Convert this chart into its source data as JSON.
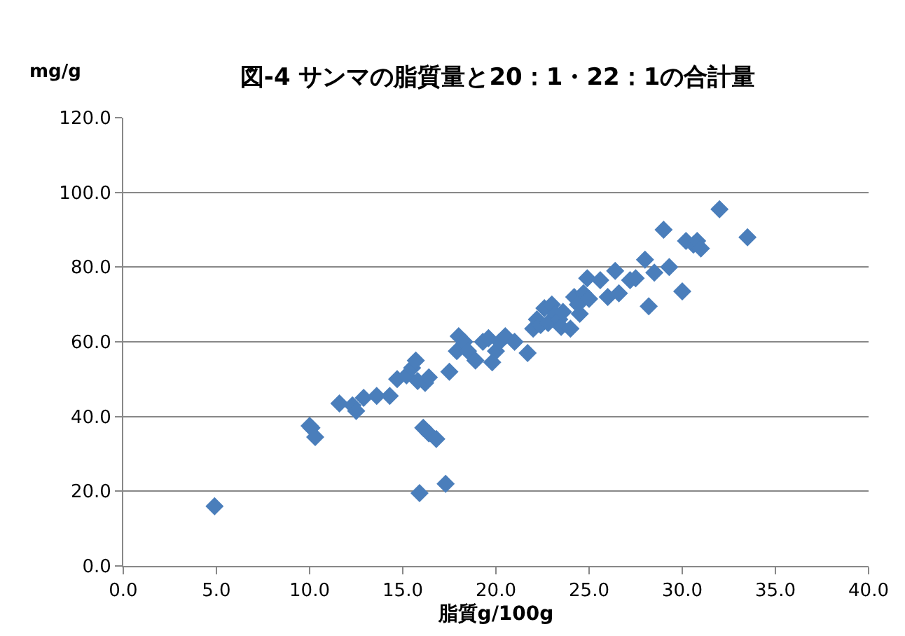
{
  "chart_data": {
    "type": "scatter",
    "title": "図-4 サンマの脂質量と20：1・22：1の合計量",
    "xlabel": "脂質g/100g",
    "ylabel": "mg/g",
    "xlim": [
      0,
      40
    ],
    "xticks": [
      {
        "value": 0,
        "label": "0.0"
      },
      {
        "value": 5,
        "label": "5.0"
      },
      {
        "value": 10,
        "label": "10.0"
      },
      {
        "value": 15,
        "label": "15.0"
      },
      {
        "value": 20,
        "label": "20.0"
      },
      {
        "value": 25,
        "label": "25.0"
      },
      {
        "value": 30,
        "label": "30.0"
      },
      {
        "value": 35,
        "label": "35.0"
      },
      {
        "value": 40,
        "label": "40.0"
      }
    ],
    "ylim": [
      0,
      120
    ],
    "yticks": [
      {
        "value": 0,
        "label": "0.0"
      },
      {
        "value": 20,
        "label": "20.0"
      },
      {
        "value": 40,
        "label": "40.0"
      },
      {
        "value": 60,
        "label": "60.0"
      },
      {
        "value": 80,
        "label": "80.0"
      },
      {
        "value": 100,
        "label": "100.0"
      },
      {
        "value": 120,
        "label": "120.0"
      }
    ],
    "grid": "y",
    "marker": "diamond",
    "legend": false,
    "series": [
      {
        "color": "#4a7ebb",
        "x": [
          4.9,
          10,
          10.1,
          10.3,
          11.6,
          12.3,
          12.5,
          12.9,
          13.6,
          14.3,
          14.7,
          15.2,
          15.5,
          15.7,
          15.8,
          16.2,
          16.4,
          16.1,
          16.4,
          16.8,
          15.9,
          17.3,
          17.5,
          17.9,
          18,
          18.3,
          18.5,
          18.9,
          19.3,
          19.6,
          19.8,
          20,
          20.2,
          20.5,
          21,
          21.7,
          22,
          22.2,
          22.4,
          22.6,
          22.8,
          23,
          23.2,
          23.4,
          23.5,
          23.6,
          24,
          24.2,
          24.4,
          24.5,
          24.7,
          24.9,
          25,
          25.6,
          26,
          26.4,
          26.6,
          27.2,
          27.5,
          28,
          28.2,
          28.5,
          29,
          29.3,
          30,
          30.2,
          30.6,
          30.8,
          31,
          32,
          33.5
        ],
        "values": [
          16,
          37.5,
          37,
          34.5,
          43.5,
          43,
          41.5,
          45,
          45.5,
          45.5,
          50,
          51,
          53,
          55,
          49.5,
          49,
          50.5,
          37,
          35.5,
          34,
          19.5,
          22,
          52,
          57.5,
          61.5,
          60,
          57.5,
          55,
          60,
          61,
          54.5,
          57.5,
          60,
          61.5,
          60,
          57,
          63.5,
          66,
          64.5,
          69,
          65,
          70,
          67.5,
          66,
          64,
          68,
          63.5,
          72,
          70,
          67.5,
          73,
          77,
          71.5,
          76.5,
          72,
          79,
          73,
          76.5,
          77,
          82,
          69.5,
          78.5,
          90,
          80,
          73.5,
          87,
          86,
          87,
          85,
          95.5,
          88
        ]
      }
    ]
  }
}
